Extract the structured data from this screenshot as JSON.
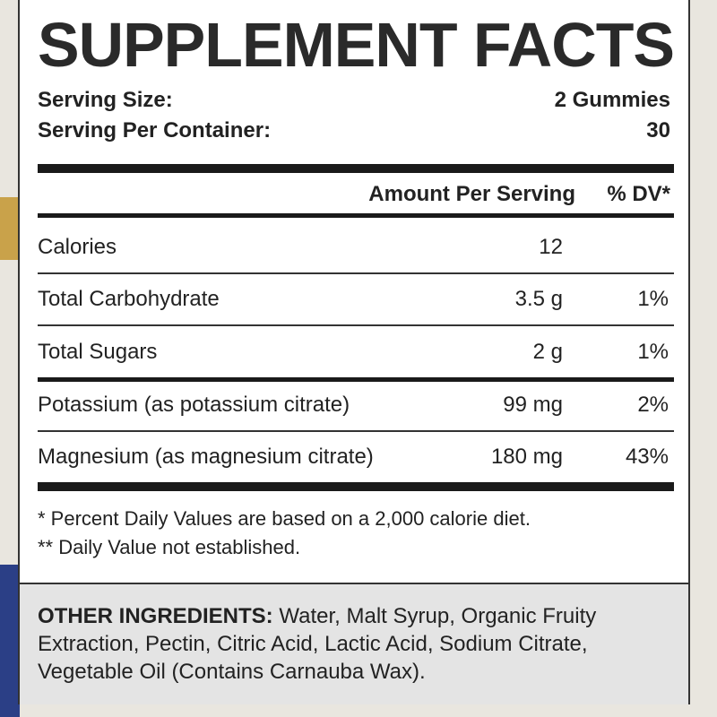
{
  "title": "SUPPLEMENT FACTS",
  "serving": [
    {
      "label": "Serving Size:",
      "value": "2 Gummies"
    },
    {
      "label": "Serving Per Container:",
      "value": "30"
    }
  ],
  "header": {
    "amount": "Amount Per Serving",
    "dv": "% DV*"
  },
  "rows": [
    {
      "name": "Calories",
      "amount": "12"
    },
    {
      "name": "Total Carbohydrate",
      "amount": "3.5 g",
      "dv": "1%"
    },
    {
      "name": "Total Sugars",
      "amount": "2 g",
      "dv": "1%"
    },
    {
      "name": "Potassium (as potassium citrate)",
      "amount": "99 mg",
      "dv": "2%"
    },
    {
      "name": "Magnesium (as magnesium citrate)",
      "amount": "180 mg",
      "dv": "43%"
    }
  ],
  "footnotes": [
    "* Percent Daily Values are based on a 2,000 calorie diet.",
    "** Daily Value not established."
  ],
  "other_ingredients": {
    "label": "OTHER INGREDIENTS:",
    "text": "Water, Malt Syrup, Organic Fruity Extraction, Pectin, Citric Acid, Lactic Acid, Sodium Citrate, Vegetable Oil (Contains Carnauba Wax)."
  }
}
